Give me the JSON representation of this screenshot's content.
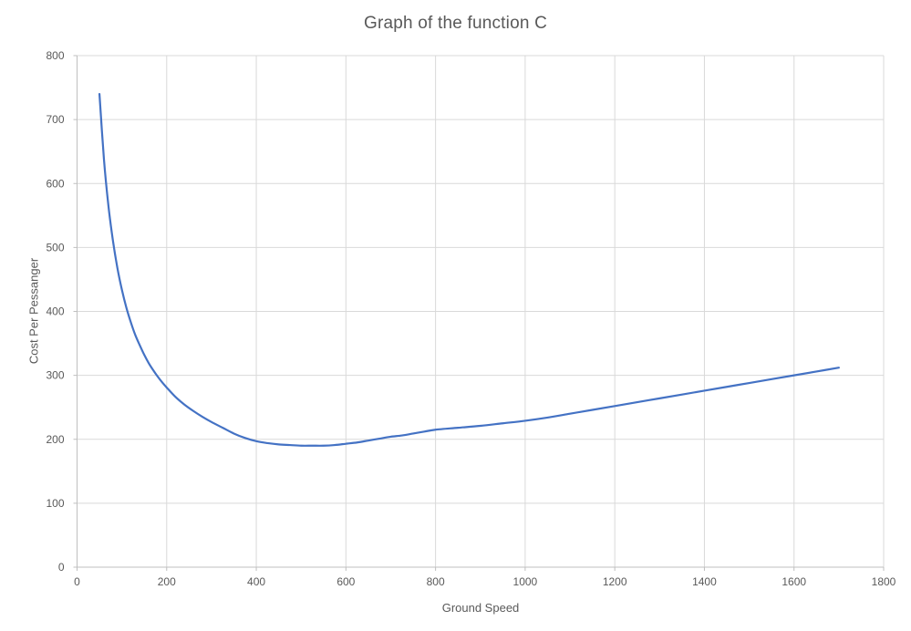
{
  "chart": {
    "title": "Graph of the function C",
    "xlabel": "Ground Speed",
    "ylabel": "Cost Per Pessanger"
  },
  "style": {
    "series_color": "#4472C4",
    "gridline_color": "#D9D9D9",
    "axis_color": "#BFBFBF",
    "text_color": "#595959",
    "background": "#FFFFFF",
    "tick_label_size": 12
  },
  "chart_data": {
    "type": "line",
    "title": "Graph of the function C",
    "xlabel": "Ground Speed",
    "ylabel": "Cost Per Pessanger",
    "xlim": [
      0,
      1800
    ],
    "ylim": [
      0,
      800
    ],
    "x_ticks": [
      0,
      200,
      400,
      600,
      800,
      1000,
      1200,
      1400,
      1600,
      1800
    ],
    "y_ticks": [
      0,
      100,
      200,
      300,
      400,
      500,
      600,
      700,
      800
    ],
    "grid": true,
    "legend": false,
    "series": [
      {
        "name": "C",
        "color": "#4472C4",
        "points": [
          [
            50,
            740
          ],
          [
            60,
            638
          ],
          [
            70,
            565
          ],
          [
            80,
            511
          ],
          [
            90,
            468
          ],
          [
            100,
            434
          ],
          [
            110,
            406
          ],
          [
            120,
            383
          ],
          [
            130,
            363
          ],
          [
            140,
            347
          ],
          [
            150,
            332
          ],
          [
            160,
            319
          ],
          [
            170,
            308
          ],
          [
            180,
            298
          ],
          [
            190,
            289
          ],
          [
            200,
            281
          ],
          [
            220,
            266
          ],
          [
            240,
            254
          ],
          [
            260,
            244
          ],
          [
            280,
            235
          ],
          [
            300,
            227
          ],
          [
            325,
            218
          ],
          [
            350,
            209
          ],
          [
            375,
            202
          ],
          [
            400,
            197
          ],
          [
            425,
            194
          ],
          [
            450,
            192
          ],
          [
            475,
            191
          ],
          [
            500,
            190
          ],
          [
            525,
            190
          ],
          [
            550,
            190
          ],
          [
            575,
            191
          ],
          [
            600,
            193
          ],
          [
            625,
            195
          ],
          [
            650,
            198
          ],
          [
            675,
            201
          ],
          [
            700,
            204
          ],
          [
            725,
            206
          ],
          [
            750,
            209
          ],
          [
            775,
            212
          ],
          [
            800,
            215
          ],
          [
            850,
            218
          ],
          [
            900,
            221
          ],
          [
            950,
            225
          ],
          [
            1000,
            229
          ],
          [
            1050,
            234
          ],
          [
            1100,
            240
          ],
          [
            1150,
            246
          ],
          [
            1200,
            252
          ],
          [
            1250,
            258
          ],
          [
            1300,
            264
          ],
          [
            1350,
            270
          ],
          [
            1400,
            276
          ],
          [
            1450,
            282
          ],
          [
            1500,
            288
          ],
          [
            1550,
            294
          ],
          [
            1600,
            300
          ],
          [
            1650,
            306
          ],
          [
            1700,
            312
          ]
        ]
      }
    ]
  }
}
